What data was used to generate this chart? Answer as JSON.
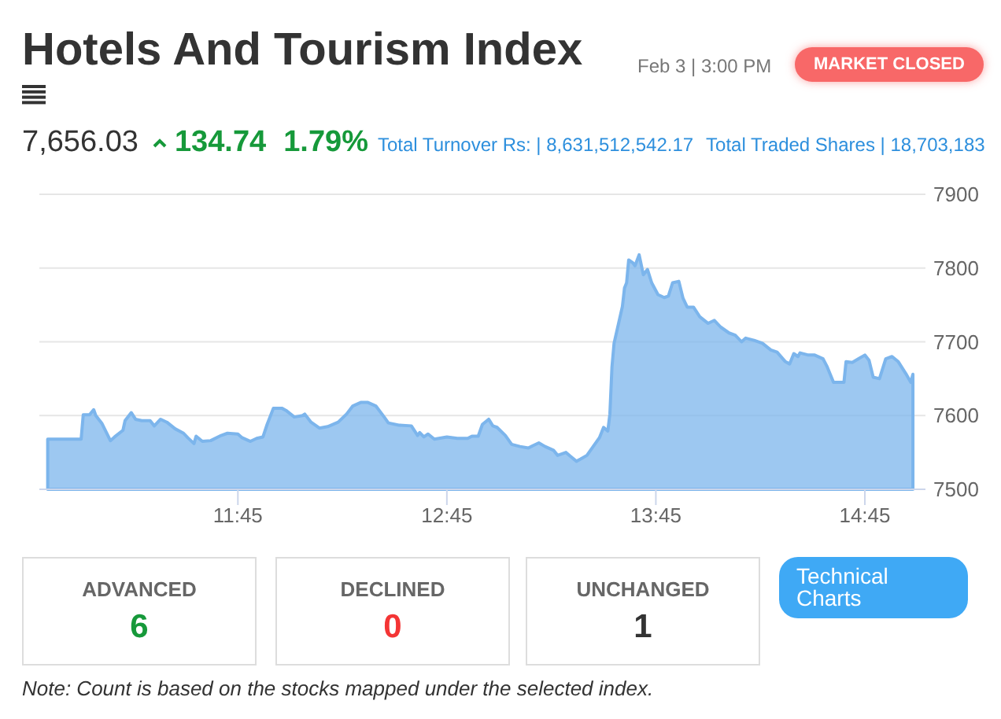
{
  "chart_data": {
    "type": "area",
    "title": "Hotels And Tourism Index",
    "annotations": [
      "Feb 3 | 3:00 PM",
      "MARKET CLOSED",
      "7,656.03",
      "134.74",
      "1.79%",
      "Total Turnover Rs: | 8,631,512,542.17",
      "Total Traded Shares | 18,703,183",
      "ADVANCED",
      "6",
      "DECLINED",
      "0",
      "UNCHANGED",
      "1",
      "Technical Charts",
      "Note: Count is based on the stocks mapped under the selected index."
    ],
    "x": [
      10.84,
      11.0,
      11.01,
      11.04,
      11.06,
      11.07,
      11.1,
      11.14,
      11.16,
      11.2,
      11.21,
      11.24,
      11.26,
      11.29,
      11.33,
      11.35,
      11.38,
      11.41,
      11.45,
      11.49,
      11.51,
      11.54,
      11.55,
      11.58,
      11.62,
      11.67,
      11.7,
      11.75,
      11.77,
      11.81,
      11.84,
      11.87,
      11.89,
      11.92,
      11.96,
      11.98,
      12.02,
      12.06,
      12.07,
      12.1,
      12.14,
      12.18,
      12.23,
      12.27,
      12.3,
      12.34,
      12.37,
      12.41,
      12.45,
      12.47,
      12.52,
      12.58,
      12.61,
      12.62,
      12.64,
      12.66,
      12.69,
      12.75,
      12.8,
      12.85,
      12.87,
      12.9,
      12.92,
      12.95,
      12.97,
      12.99,
      13.03,
      13.06,
      13.1,
      13.14,
      13.16,
      13.19,
      13.22,
      13.26,
      13.28,
      13.32,
      13.34,
      13.37,
      13.39,
      13.42,
      13.45,
      13.48,
      13.5,
      13.52,
      13.53,
      13.54,
      13.55,
      13.57,
      13.59,
      13.6,
      13.61,
      13.62,
      13.64,
      13.65,
      13.67,
      13.69,
      13.71,
      13.73,
      13.76,
      13.79,
      13.81,
      13.83,
      13.86,
      13.88,
      13.9,
      13.93,
      13.96,
      14.0,
      14.03,
      14.06,
      14.1,
      14.13,
      14.16,
      14.18,
      14.22,
      14.26,
      14.3,
      14.33,
      14.37,
      14.39,
      14.41,
      14.43,
      14.44,
      14.48,
      14.51,
      14.55,
      14.57,
      14.6,
      14.65,
      14.66,
      14.69,
      14.72,
      14.75,
      14.77,
      14.79,
      14.82,
      14.85,
      14.88,
      14.91,
      14.95,
      14.97,
      14.98
    ],
    "series": [
      {
        "color": "#7cb5ec",
        "values": [
          7568,
          7568,
          7601,
          7601,
          7608,
          7600,
          7589,
          7566,
          7571,
          7580,
          7593,
          7604,
          7595,
          7593,
          7593,
          7586,
          7595,
          7591,
          7582,
          7576,
          7570,
          7562,
          7572,
          7565,
          7566,
          7573,
          7576,
          7575,
          7570,
          7565,
          7569,
          7571,
          7588,
          7610,
          7610,
          7607,
          7598,
          7600,
          7602,
          7591,
          7583,
          7585,
          7591,
          7602,
          7613,
          7618,
          7618,
          7613,
          7598,
          7590,
          7587,
          7586,
          7573,
          7577,
          7571,
          7575,
          7568,
          7571,
          7569,
          7569,
          7572,
          7572,
          7588,
          7595,
          7586,
          7584,
          7573,
          7561,
          7558,
          7556,
          7559,
          7563,
          7558,
          7553,
          7546,
          7550,
          7545,
          7538,
          7541,
          7546,
          7558,
          7570,
          7584,
          7579,
          7602,
          7666,
          7698,
          7723,
          7748,
          7773,
          7780,
          7811,
          7807,
          7803,
          7818,
          7791,
          7798,
          7780,
          7764,
          7760,
          7762,
          7780,
          7782,
          7759,
          7747,
          7747,
          7734,
          7725,
          7729,
          7720,
          7712,
          7709,
          7700,
          7705,
          7702,
          7698,
          7689,
          7686,
          7673,
          7670,
          7684,
          7680,
          7685,
          7682,
          7682,
          7677,
          7666,
          7645,
          7645,
          7673,
          7672,
          7677,
          7682,
          7675,
          7652,
          7650,
          7677,
          7680,
          7673,
          7655,
          7645,
          7656
        ]
      }
    ],
    "xlim": [
      10.8,
      15.04
    ],
    "xticks": [
      {
        "value": 11.75,
        "label": "11:45"
      },
      {
        "value": 12.75,
        "label": "12:45"
      },
      {
        "value": 13.75,
        "label": "13:45"
      },
      {
        "value": 14.75,
        "label": "14:45"
      }
    ],
    "ylim": [
      7500,
      7900
    ],
    "yticks": [
      7500,
      7600,
      7700,
      7800,
      7900
    ],
    "grid": "y"
  }
}
